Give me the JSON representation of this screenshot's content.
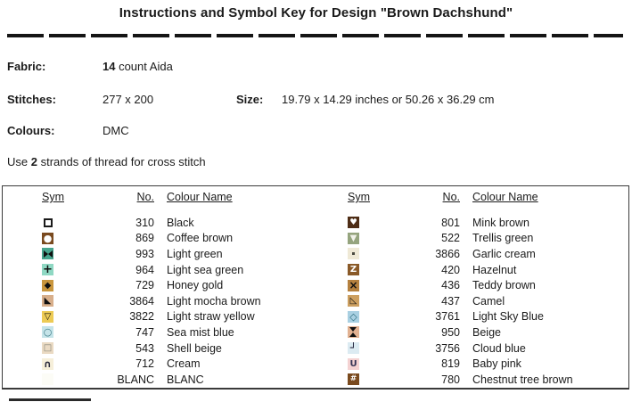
{
  "title": "Instructions and Symbol Key for Design \"Brown Dachshund\"",
  "info": {
    "fabric_label": "Fabric:",
    "fabric_value_bold": "14",
    "fabric_value_rest": " count Aida",
    "stitches_label": "Stitches:",
    "stitches_value": "277 x 200",
    "size_label": "Size:",
    "size_value": "19.79 x 14.29 inches or 50.26 x 36.29 cm",
    "colours_label": "Colours:",
    "colours_value": "DMC",
    "strands_prefix": "Use ",
    "strands_bold": "2",
    "strands_suffix": " strands of thread for cross stitch"
  },
  "key_table": {
    "headers": {
      "sym": "Sym",
      "no": "No.",
      "colour_name": "Colour Name"
    },
    "left_rows": [
      {
        "no": "310",
        "name": "Black",
        "symbol": "square-outline-thick",
        "symbol_color": "#1a1a1a",
        "bg": "#ffffff"
      },
      {
        "no": "869",
        "name": "Coffee brown",
        "symbol": "circle-filled",
        "symbol_color": "#ffffff",
        "bg": "#7a4a1f"
      },
      {
        "no": "993",
        "name": "Light green",
        "symbol": "bowtie",
        "symbol_color": "#101010",
        "bg": "#47a68e"
      },
      {
        "no": "964",
        "name": "Light sea green",
        "symbol": "plus",
        "symbol_color": "#101010",
        "bg": "#8fd8c3"
      },
      {
        "no": "729",
        "name": "Honey gold",
        "symbol": "diamond-filled",
        "symbol_color": "#101010",
        "bg": "#c9963d"
      },
      {
        "no": "3864",
        "name": "Light mocha brown",
        "symbol": "triangle-lower-left-filled",
        "symbol_color": "#101010",
        "bg": "#d8af8b"
      },
      {
        "no": "3822",
        "name": "Light straw yellow",
        "symbol": "triangle-down-outline",
        "symbol_color": "#101010",
        "bg": "#edcb55"
      },
      {
        "no": "747",
        "name": "Sea mist blue",
        "symbol": "circle-outline",
        "symbol_color": "#3d7a85",
        "bg": "#c5e4e9"
      },
      {
        "no": "543",
        "name": "Shell beige",
        "symbol": "square-outline",
        "symbol_color": "#85857a",
        "bg": "#eadac3"
      },
      {
        "no": "712",
        "name": "Cream",
        "symbol": "arch",
        "symbol_color": "#2a2a3d",
        "bg": "#f6efda"
      },
      {
        "no": "BLANC",
        "name": "BLANC",
        "symbol": "blank",
        "symbol_color": "#000000",
        "bg": "#fcfcf6"
      }
    ],
    "right_rows": [
      {
        "no": "801",
        "name": "Mink brown",
        "symbol": "heart-filled",
        "symbol_color": "#ffffff",
        "bg": "#4e2d16"
      },
      {
        "no": "522",
        "name": "Trellis green",
        "symbol": "triangle-down-filled",
        "symbol_color": "#f2f2ea",
        "bg": "#95a47e"
      },
      {
        "no": "3866",
        "name": "Garlic cream",
        "symbol": "dot",
        "symbol_color": "#4a4a40",
        "bg": "#efe9d6"
      },
      {
        "no": "420",
        "name": "Hazelnut",
        "symbol": "letter-z",
        "symbol_color": "#ffffff",
        "bg": "#8a5a28"
      },
      {
        "no": "436",
        "name": "Teddy brown",
        "symbol": "cross-x",
        "symbol_color": "#101010",
        "bg": "#b5813f"
      },
      {
        "no": "437",
        "name": "Camel",
        "symbol": "triangle-lower-left-outline",
        "symbol_color": "#101010",
        "bg": "#cda061"
      },
      {
        "no": "3761",
        "name": "Light Sky Blue",
        "symbol": "diamond-outline",
        "symbol_color": "#2e6f80",
        "bg": "#a9d0e2"
      },
      {
        "no": "950",
        "name": "Beige",
        "symbol": "hourglass-filled",
        "symbol_color": "#101010",
        "bg": "#e2b292"
      },
      {
        "no": "3756",
        "name": "Cloud blue",
        "symbol": "corner-up-left",
        "symbol_color": "#1a1a33",
        "bg": "#dcebf2"
      },
      {
        "no": "819",
        "name": "Baby pink",
        "symbol": "letter-u",
        "symbol_color": "#333355",
        "bg": "#f4d2d2"
      },
      {
        "no": "780",
        "name": "Chestnut tree brown",
        "symbol": "hash",
        "symbol_color": "#ffffff",
        "bg": "#7a4a1e"
      }
    ]
  }
}
